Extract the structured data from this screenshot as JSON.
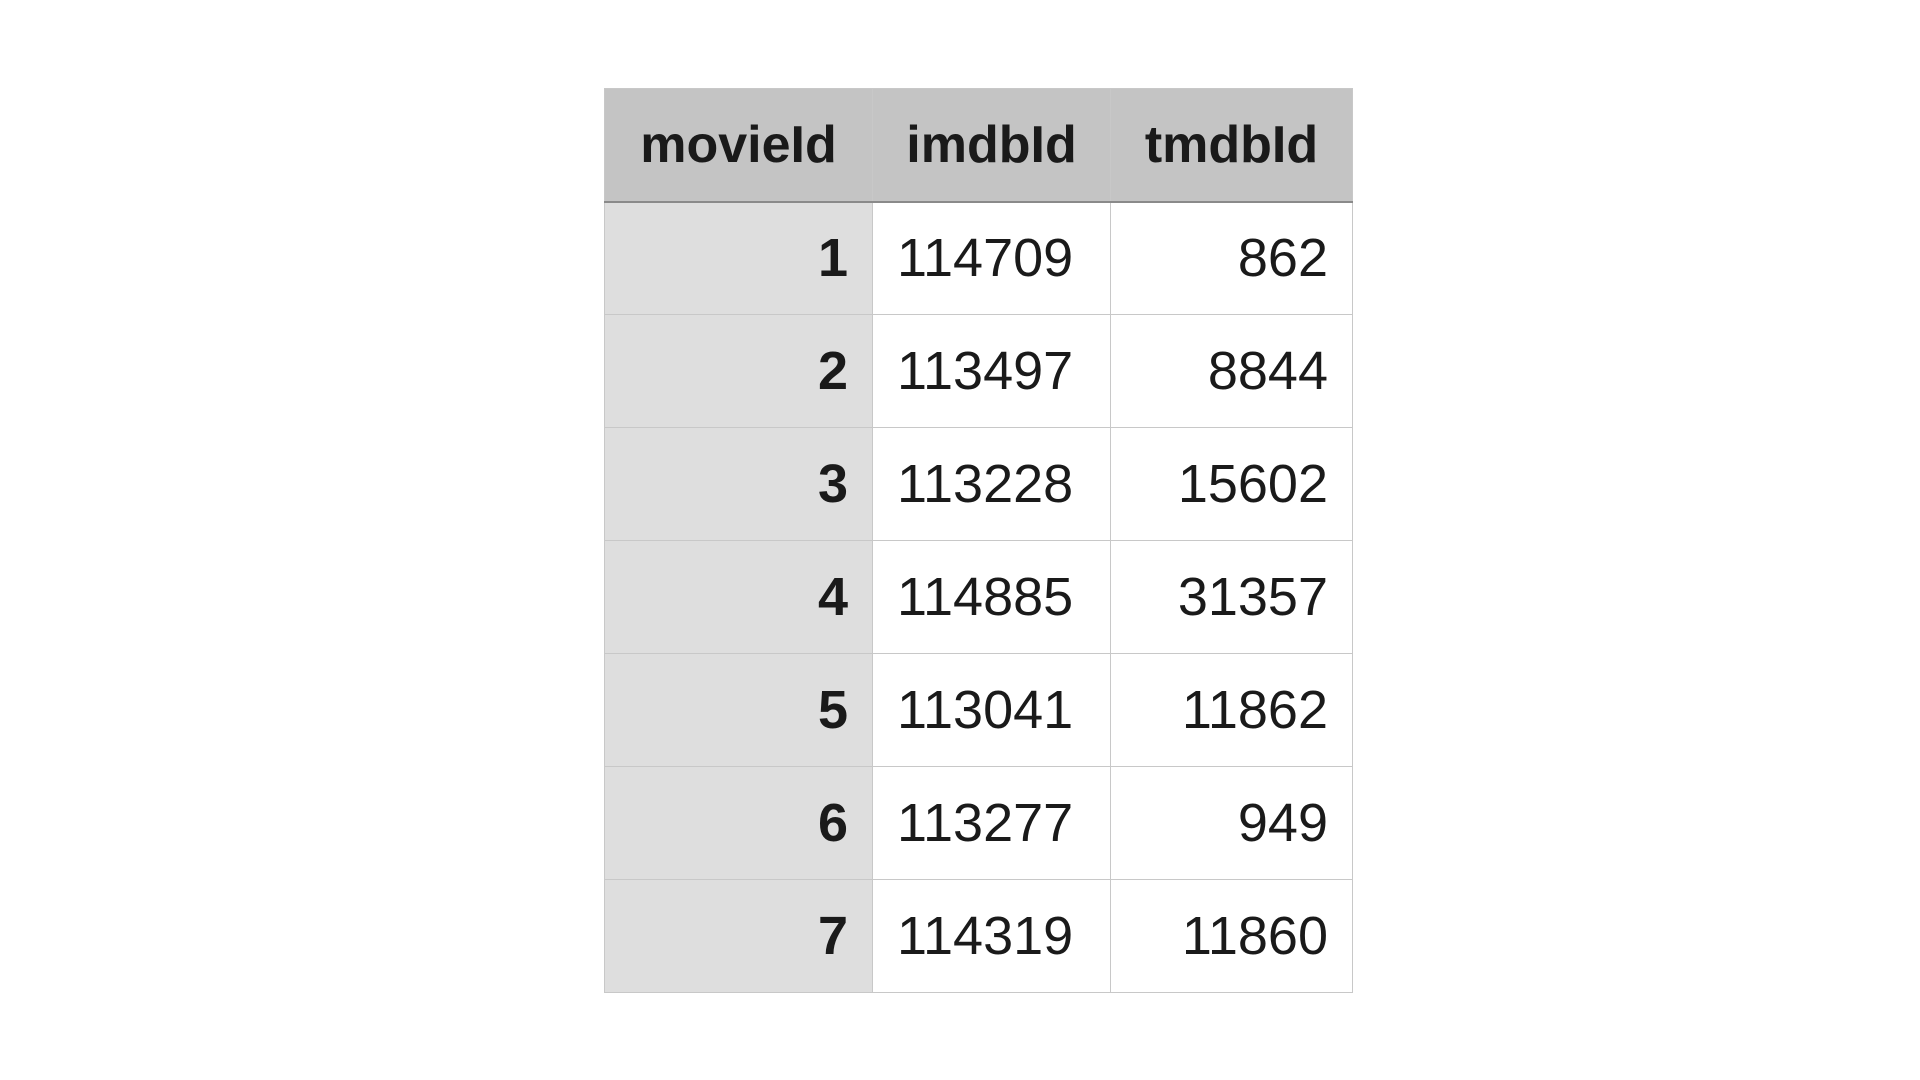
{
  "table": {
    "headers": [
      "movieId",
      "imdbId",
      "tmdbId"
    ],
    "rows": [
      [
        "1",
        "114709",
        "862"
      ],
      [
        "2",
        "113497",
        "8844"
      ],
      [
        "3",
        "113228",
        "15602"
      ],
      [
        "4",
        "114885",
        "31357"
      ],
      [
        "5",
        "113041",
        "11862"
      ],
      [
        "6",
        "113277",
        "949"
      ],
      [
        "7",
        "114319",
        "11860"
      ]
    ]
  },
  "colors": {
    "header_bg": "#c4c4c4",
    "index_col_bg": "#dedede",
    "cell_bg": "#ffffff",
    "grid_line": "#c8c8c8"
  }
}
